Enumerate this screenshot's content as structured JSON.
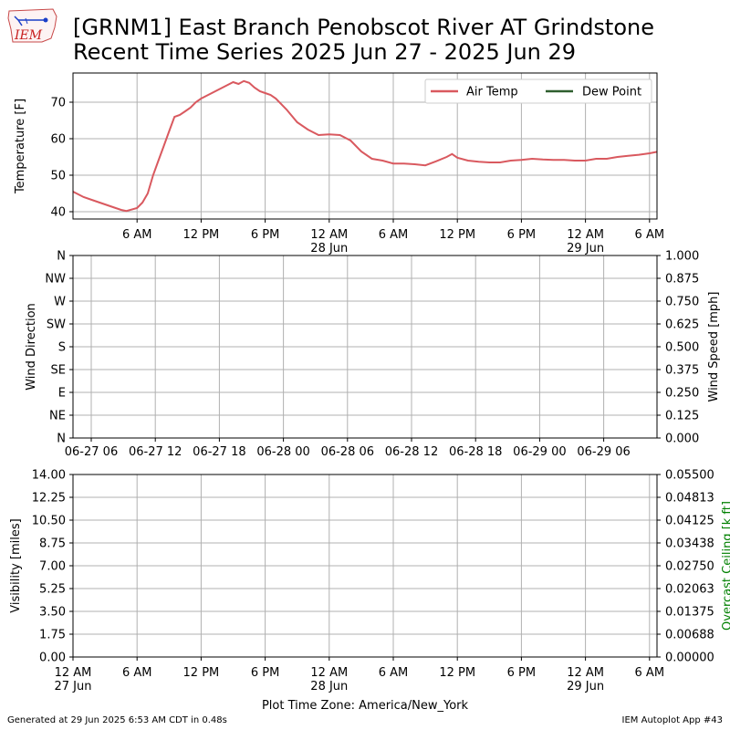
{
  "header": {
    "logo_text": "IEM",
    "title_line1": "[GRNM1] East Branch Penobscot River  AT Grindstone",
    "title_line2": "Recent Time Series 2025 Jun 27 - 2025 Jun 29"
  },
  "footer": {
    "generated": "Generated at 29 Jun 2025 6:53 AM CDT in 0.48s",
    "app": "IEM Autoplot App #43"
  },
  "colors": {
    "air_temp": "#d9595f",
    "dew_point": "#2e5e2e",
    "ceiling_axis": "#008000",
    "grid": "#b0b0b0"
  },
  "chart_data": [
    {
      "type": "line",
      "ylabel": "Temperature [F]",
      "ylim": [
        38,
        78
      ],
      "yticks": [
        40,
        50,
        60,
        70
      ],
      "xlim_hours": [
        0,
        54.7
      ],
      "xticks": [
        {
          "x": 6,
          "label": "6 AM",
          "sub": ""
        },
        {
          "x": 12,
          "label": "12 PM",
          "sub": ""
        },
        {
          "x": 18,
          "label": "6 PM",
          "sub": ""
        },
        {
          "x": 24,
          "label": "12 AM",
          "sub": "28 Jun"
        },
        {
          "x": 30,
          "label": "6 AM",
          "sub": ""
        },
        {
          "x": 36,
          "label": "12 PM",
          "sub": ""
        },
        {
          "x": 42,
          "label": "6 PM",
          "sub": ""
        },
        {
          "x": 48,
          "label": "12 AM",
          "sub": "29 Jun"
        },
        {
          "x": 54,
          "label": "6 AM",
          "sub": ""
        }
      ],
      "grid": true,
      "legend_position": "top-right",
      "series": [
        {
          "name": "Air Temp",
          "x": [
            0,
            1,
            2,
            3,
            4,
            4.5,
            5,
            6,
            6.5,
            7,
            7.5,
            8,
            8.5,
            9,
            9.5,
            10,
            10.5,
            11,
            11.5,
            12,
            13,
            14,
            15,
            15.5,
            16,
            16.5,
            17,
            17.5,
            18,
            18.5,
            19,
            20,
            21,
            22,
            23,
            24,
            25,
            26,
            27,
            28,
            29,
            30,
            31,
            32,
            33,
            34,
            35,
            35.5,
            36,
            37,
            38,
            39,
            40,
            41,
            42,
            43,
            44,
            45,
            46,
            47,
            48,
            49,
            50,
            51,
            52,
            53,
            54,
            54.7
          ],
          "y": [
            45.5,
            44,
            43,
            42,
            41,
            40.5,
            40.2,
            41,
            42.5,
            45,
            50,
            54,
            58,
            62,
            66,
            66.5,
            67.5,
            68.5,
            70,
            71,
            72.5,
            74,
            75.5,
            75,
            75.8,
            75.3,
            74,
            73,
            72.5,
            72,
            71,
            68,
            64.5,
            62.5,
            61,
            61.2,
            61,
            59.5,
            56.5,
            54.5,
            54,
            53.2,
            53.2,
            53,
            52.7,
            53.8,
            55,
            55.8,
            54.8,
            54,
            53.7,
            53.5,
            53.5,
            54,
            54.2,
            54.5,
            54.3,
            54.2,
            54.2,
            54,
            54,
            54.5,
            54.5,
            55,
            55.3,
            55.6,
            56,
            56.4
          ]
        },
        {
          "name": "Dew Point",
          "x": [],
          "y": []
        }
      ]
    },
    {
      "type": "scatter",
      "ylabel": "Wind Direction",
      "ylabel_right": "Wind Speed [mph]",
      "ylim": [
        0,
        360
      ],
      "yticks_left": [
        "N",
        "NW",
        "W",
        "SW",
        "S",
        "SE",
        "E",
        "NE",
        "N"
      ],
      "ylim_right": [
        0,
        1
      ],
      "yticks_right": [
        "1.000",
        "0.875",
        "0.750",
        "0.625",
        "0.500",
        "0.375",
        "0.250",
        "0.125",
        "0.000"
      ],
      "xticks": [
        "06-27 06",
        "06-27 12",
        "06-27 18",
        "06-28 00",
        "06-28 06",
        "06-28 12",
        "06-28 18",
        "06-29 00",
        "06-29 06"
      ],
      "grid": true,
      "series": []
    },
    {
      "type": "line",
      "ylabel": "Visibility [miles]",
      "ylabel_right": "Overcast Ceiling [k ft]",
      "ylim": [
        0,
        14
      ],
      "yticks_left": [
        "14.00",
        "12.25",
        "10.50",
        "8.75",
        "7.00",
        "5.25",
        "3.50",
        "1.75",
        "0.00"
      ],
      "ylim_right": [
        0,
        0.055
      ],
      "yticks_right": [
        "0.05500",
        "0.04813",
        "0.04125",
        "0.03438",
        "0.02750",
        "0.02063",
        "0.01375",
        "0.00688",
        "0.00000"
      ],
      "xticks": [
        {
          "label": "12 AM",
          "sub": "27 Jun"
        },
        {
          "label": "6 AM",
          "sub": ""
        },
        {
          "label": "12 PM",
          "sub": ""
        },
        {
          "label": "6 PM",
          "sub": ""
        },
        {
          "label": "12 AM",
          "sub": "28 Jun"
        },
        {
          "label": "6 AM",
          "sub": ""
        },
        {
          "label": "12 PM",
          "sub": ""
        },
        {
          "label": "6 PM",
          "sub": ""
        },
        {
          "label": "12 AM",
          "sub": "29 Jun"
        },
        {
          "label": "6 AM",
          "sub": ""
        }
      ],
      "xlabel": "Plot Time Zone: America/New_York",
      "grid": true,
      "series": []
    }
  ]
}
